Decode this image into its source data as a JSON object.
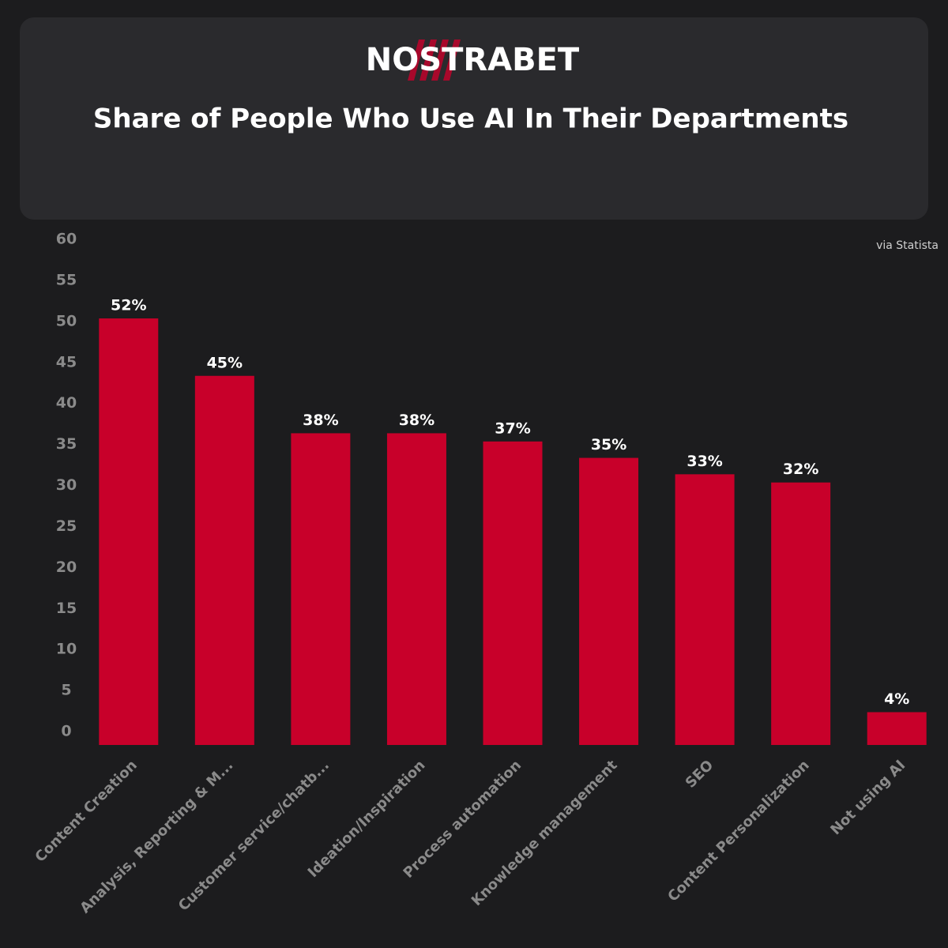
{
  "chart_data": {
    "type": "bar",
    "brand": "NOSTRABET",
    "title": "Share of People Who Use AI In Their Departments",
    "source": "via Statista",
    "categories": [
      "Content Creation",
      "Analysis, Reporting & M...",
      "Customer service/chatb...",
      "Ideation/Inspiration",
      "Process automation",
      "Knowledge management",
      "SEO",
      "Content Personalization",
      "Not using AI"
    ],
    "values": [
      52,
      45,
      38,
      38,
      37,
      35,
      33,
      32,
      4
    ],
    "value_labels": [
      "52%",
      "45%",
      "38%",
      "38%",
      "37%",
      "35%",
      "33%",
      "32%",
      "4%"
    ],
    "color": "#c8002a",
    "ylim": [
      0,
      60
    ],
    "yticks": [
      0,
      5,
      10,
      15,
      20,
      25,
      30,
      35,
      40,
      45,
      50,
      55,
      60
    ],
    "grid": false
  }
}
